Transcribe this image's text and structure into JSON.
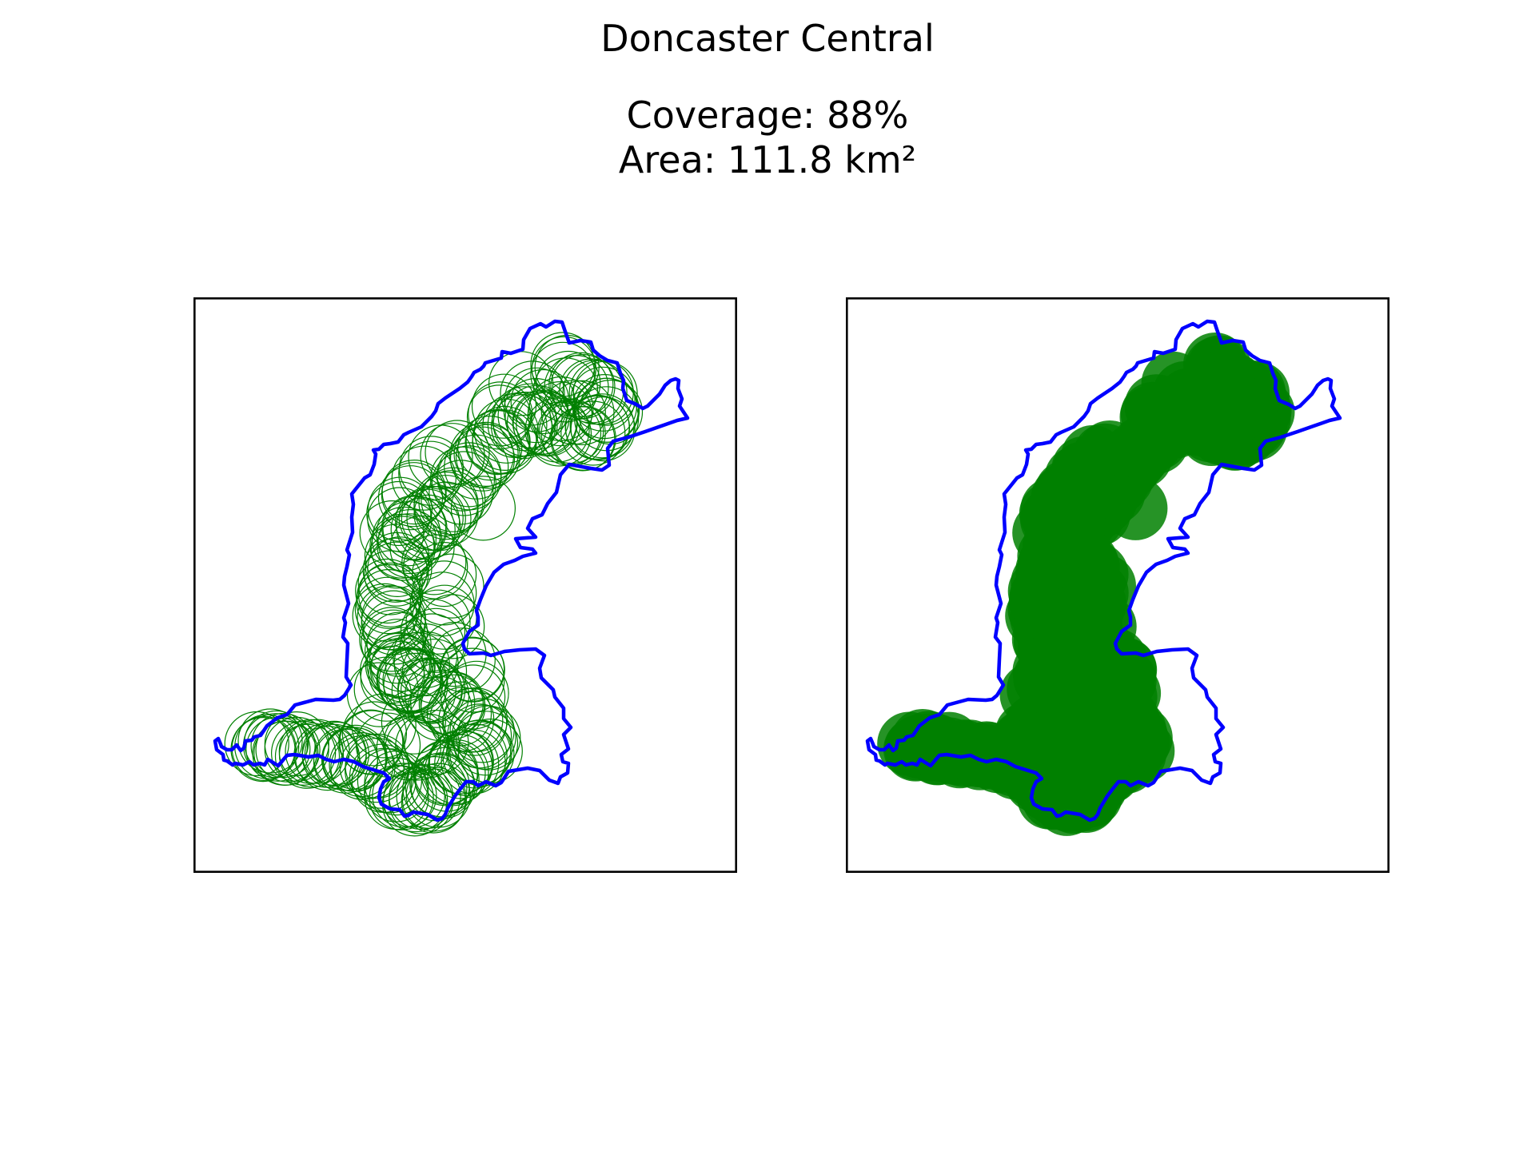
{
  "figure": {
    "title": "Doncaster Central",
    "coverage_text": "Coverage: 88%",
    "area_text": "Area: 111.8 km²"
  },
  "colors": {
    "boundary": "#0000ff",
    "coverage": "#008000",
    "background": "#ffffff",
    "frame": "#000000"
  },
  "chart_data": [
    {
      "type": "map",
      "title": "",
      "panel": "left",
      "style": "outlined circles",
      "boundary_color": "#0000ff",
      "circle_color": "#008000",
      "axes": "no ticks"
    },
    {
      "type": "map",
      "title": "",
      "panel": "right",
      "style": "filled circles",
      "boundary_color": "#0000ff",
      "circle_color": "#008000",
      "axes": "no ticks"
    }
  ]
}
